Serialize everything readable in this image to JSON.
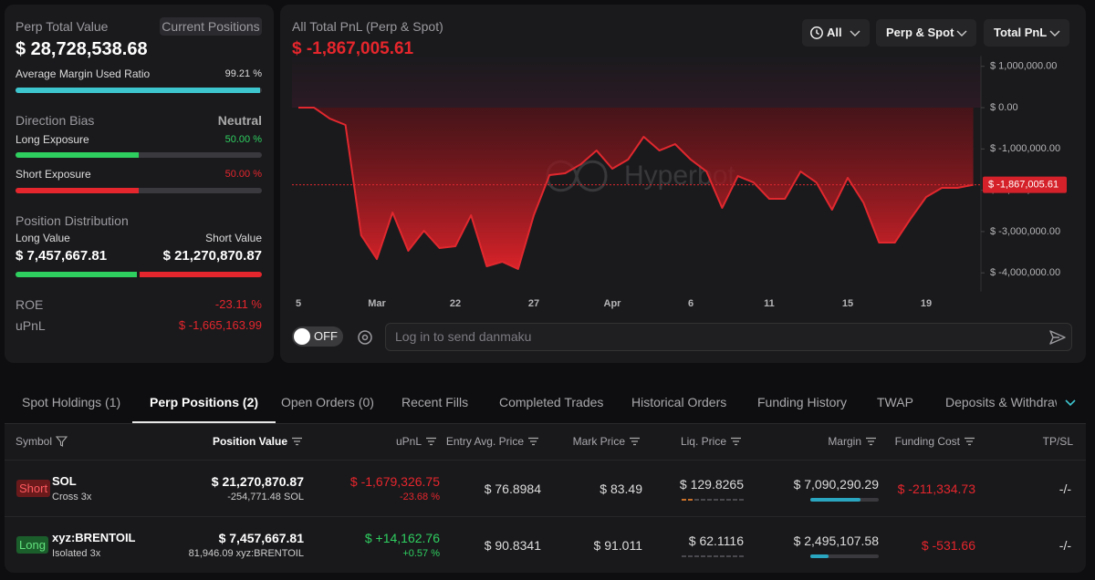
{
  "summary": {
    "title": "Perp Total Value",
    "button": "Current Positions",
    "total_value": "$ 28,728,538.68",
    "margin_ratio": {
      "label": "Average Margin Used Ratio",
      "value": 99.21,
      "value_label": "99.21 %"
    },
    "direction_bias": {
      "label": "Direction Bias",
      "value": "Neutral"
    },
    "long_exposure": {
      "label": "Long Exposure",
      "value": 50,
      "value_label": "50.00 %"
    },
    "short_exposure": {
      "label": "Short Exposure",
      "value": 50,
      "value_label": "50.00 %"
    },
    "position_distribution": {
      "title": "Position Distribution",
      "long_label": "Long Value",
      "short_label": "Short Value",
      "long_value": "$ 7,457,667.81",
      "short_value": "$ 21,270,870.87"
    },
    "roe": {
      "label": "ROE",
      "value": "-23.11 %"
    },
    "upnl": {
      "label": "uPnL",
      "value": "$ -1,665,163.99"
    }
  },
  "chart_data": {
    "type": "line",
    "title": "All Total PnL (Perp & Spot)",
    "watermark": "Hyperbot",
    "filters": [
      "All",
      "Perp & Spot",
      "Total PnL"
    ],
    "current_value": {
      "value": -1867005.61,
      "label": "$ -1,867,005.61"
    },
    "categories": [
      "5",
      null,
      null,
      null,
      null,
      "Mar",
      null,
      null,
      null,
      null,
      "22",
      null,
      null,
      null,
      null,
      "27",
      null,
      null,
      null,
      null,
      "Apr",
      null,
      null,
      null,
      null,
      "6",
      null,
      null,
      null,
      null,
      "11",
      null,
      null,
      null,
      null,
      "15",
      null,
      null,
      null,
      null,
      "19",
      null,
      null,
      null
    ],
    "series": [
      {
        "color": "#e0282e",
        "values": [
          0,
          0,
          -265000,
          -419000,
          -3090000,
          -3665000,
          -2539000,
          -3466000,
          -2980000,
          -3400000,
          -3355000,
          -2605000,
          -3841000,
          -3731000,
          -3907000,
          -2605000,
          -1634000,
          -1589000,
          -1369000,
          -1038000,
          -1479000,
          -1258000,
          -706000,
          -1038000,
          -883000,
          -1258000,
          -1545000,
          -2428000,
          -1656000,
          -1810000,
          -2208000,
          -2208000,
          -1545000,
          -1810000,
          -2472000,
          -1700000,
          -2296000,
          -3267000,
          -3267000,
          -2693000,
          -2163000,
          -1943000,
          -1943000,
          -1867005.61
        ]
      }
    ],
    "ylim": [
      -4450000,
      1250000
    ],
    "yticks": [
      {
        "value": 1000000,
        "label": "$ 1,000,000.00"
      },
      {
        "value": 0,
        "label": "$ 0.00"
      },
      {
        "value": -1000000,
        "label": "$ -1,000,000.00"
      },
      {
        "value": -2000000,
        "label": "$ -2,000,000.00"
      },
      {
        "value": -3000000,
        "label": "$ -3,000,000.00"
      },
      {
        "value": -4000000,
        "label": "$ -4,000,000.00"
      }
    ],
    "grid": false
  },
  "danmaku": {
    "toggle": "OFF",
    "placeholder": "Log in to send danmaku"
  },
  "tabs": {
    "items": [
      "Spot Holdings (1)",
      "Perp Positions (2)",
      "Open Orders (0)",
      "Recent Fills",
      "Completed Trades",
      "Historical Orders",
      "Funding History",
      "TWAP",
      "Deposits & Withdraw"
    ],
    "active": 1
  },
  "table": {
    "headers": [
      "Symbol",
      "Position Value",
      "uPnL",
      "Entry Avg. Price",
      "Mark Price",
      "Liq. Price",
      "Margin",
      "Funding Cost",
      "TP/SL"
    ],
    "rows": [
      {
        "side": "Short",
        "symbol": "SOL",
        "mode": "Cross 3x",
        "position_value": "$ 21,270,870.87",
        "size": "-254,771.48 SOL",
        "upnl": "$ -1,679,326.75",
        "upnl_pct": "-23.68 %",
        "entry_price": "$ 76.8984",
        "mark_price": "$ 83.49",
        "liq_price": "$ 129.8265",
        "margin": "$ 7,090,290.29",
        "funding_cost": "$ -211,334.73",
        "tp_sl": "-/-"
      },
      {
        "side": "Long",
        "symbol": "xyz:BRENTOIL",
        "mode": "Isolated 3x",
        "position_value": "$ 7,457,667.81",
        "size": "81,946.09 xyz:BRENTOIL",
        "upnl": "$ +14,162.76",
        "upnl_pct": "+0.57 %",
        "entry_price": "$ 90.8341",
        "mark_price": "$ 91.011",
        "liq_price": "$ 62.1116",
        "margin": "$ 2,495,107.58",
        "funding_cost": "$ -531.66",
        "tp_sl": "-/-"
      }
    ]
  }
}
